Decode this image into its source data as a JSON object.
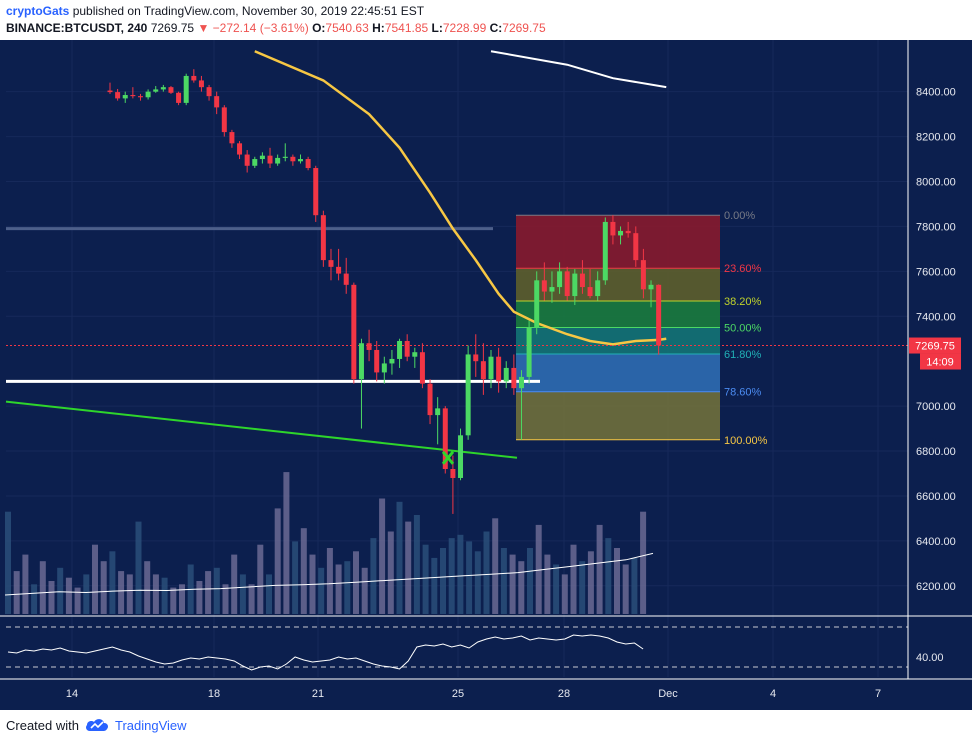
{
  "header": {
    "author": "cryptoGats",
    "published": "published on TradingView.com, November 30, 2019 22:45:51 EST",
    "symbol": "BINANCE:BTCUSDT, 240",
    "last": "7269.75",
    "change": "▼ −272.14 (−3.61%)",
    "o_label": "O:",
    "o_val": "7540.63",
    "h_label": "H:",
    "h_val": "7541.85",
    "l_label": "L:",
    "l_val": "7228.99",
    "c_label": "C:",
    "c_val": "7269.75"
  },
  "footer": {
    "created_with": "Created with",
    "brand": "TradingView"
  },
  "colors": {
    "background": "#0c1f4e",
    "up": "#4cd964",
    "down": "#f23645",
    "ma_slow": "#ffffff",
    "ma_fast": "#f7c744",
    "trendline": "#2ed52b",
    "support": "#ffffff",
    "resistance": "#4d5f8a",
    "price_line": "#f23645"
  },
  "chart_data": {
    "type": "candlestick",
    "x_ticks": [
      "14",
      "18",
      "21",
      "25",
      "28",
      "Dec",
      "4",
      "7"
    ],
    "y_ticks": [
      "8400.00",
      "8200.00",
      "8000.00",
      "7800.00",
      "7600.00",
      "7400.00",
      "7000.00",
      "6800.00",
      "6600.00",
      "6400.00",
      "6200.00"
    ],
    "ylim": [
      6070,
      8630
    ],
    "current_price": "7269.75",
    "countdown": "14:09",
    "fibonacci": {
      "high": 7850,
      "low": 6850,
      "levels": [
        {
          "label": "0.00%",
          "ratio": 0.0,
          "color": "#787b86",
          "fill": "#861a2e"
        },
        {
          "label": "23.60%",
          "ratio": 0.236,
          "color": "#f23645",
          "fill": "#5c5d2c"
        },
        {
          "label": "38.20%",
          "ratio": 0.382,
          "color": "#c0d32b",
          "fill": "#1a7a3e"
        },
        {
          "label": "50.00%",
          "ratio": 0.5,
          "color": "#4cd964",
          "fill": "#137274"
        },
        {
          "label": "61.80%",
          "ratio": 0.618,
          "color": "#21b1b7",
          "fill": "#2e6ab0"
        },
        {
          "label": "78.60%",
          "ratio": 0.786,
          "color": "#4c8cf2",
          "fill": "#6e6e3c"
        },
        {
          "label": "100.00%",
          "ratio": 1.0,
          "color": "#f7c744",
          "fill": null
        }
      ]
    },
    "candles": [
      {
        "o": 8405,
        "h": 8440,
        "l": 8390,
        "c": 8398
      },
      {
        "o": 8398,
        "h": 8412,
        "l": 8360,
        "c": 8370
      },
      {
        "o": 8370,
        "h": 8400,
        "l": 8350,
        "c": 8385
      },
      {
        "o": 8385,
        "h": 8420,
        "l": 8370,
        "c": 8380
      },
      {
        "o": 8380,
        "h": 8390,
        "l": 8360,
        "c": 8375
      },
      {
        "o": 8375,
        "h": 8410,
        "l": 8365,
        "c": 8400
      },
      {
        "o": 8400,
        "h": 8425,
        "l": 8395,
        "c": 8410
      },
      {
        "o": 8410,
        "h": 8430,
        "l": 8400,
        "c": 8420
      },
      {
        "o": 8420,
        "h": 8425,
        "l": 8390,
        "c": 8395
      },
      {
        "o": 8395,
        "h": 8400,
        "l": 8340,
        "c": 8350
      },
      {
        "o": 8350,
        "h": 8480,
        "l": 8340,
        "c": 8470
      },
      {
        "o": 8470,
        "h": 8500,
        "l": 8440,
        "c": 8450
      },
      {
        "o": 8450,
        "h": 8470,
        "l": 8400,
        "c": 8420
      },
      {
        "o": 8420,
        "h": 8430,
        "l": 8360,
        "c": 8380
      },
      {
        "o": 8380,
        "h": 8400,
        "l": 8300,
        "c": 8330
      },
      {
        "o": 8330,
        "h": 8340,
        "l": 8200,
        "c": 8220
      },
      {
        "o": 8220,
        "h": 8230,
        "l": 8150,
        "c": 8170
      },
      {
        "o": 8170,
        "h": 8180,
        "l": 8100,
        "c": 8120
      },
      {
        "o": 8120,
        "h": 8140,
        "l": 8040,
        "c": 8070
      },
      {
        "o": 8070,
        "h": 8110,
        "l": 8060,
        "c": 8100
      },
      {
        "o": 8100,
        "h": 8130,
        "l": 8080,
        "c": 8115
      },
      {
        "o": 8115,
        "h": 8150,
        "l": 8060,
        "c": 8080
      },
      {
        "o": 8080,
        "h": 8120,
        "l": 8070,
        "c": 8105
      },
      {
        "o": 8105,
        "h": 8170,
        "l": 8090,
        "c": 8110
      },
      {
        "o": 8110,
        "h": 8120,
        "l": 8070,
        "c": 8090
      },
      {
        "o": 8090,
        "h": 8120,
        "l": 8080,
        "c": 8100
      },
      {
        "o": 8100,
        "h": 8110,
        "l": 8050,
        "c": 8060
      },
      {
        "o": 8060,
        "h": 8070,
        "l": 7820,
        "c": 7850
      },
      {
        "o": 7850,
        "h": 7870,
        "l": 7620,
        "c": 7650
      },
      {
        "o": 7650,
        "h": 7700,
        "l": 7560,
        "c": 7620
      },
      {
        "o": 7620,
        "h": 7700,
        "l": 7560,
        "c": 7590
      },
      {
        "o": 7590,
        "h": 7660,
        "l": 7500,
        "c": 7540
      },
      {
        "o": 7540,
        "h": 7550,
        "l": 7100,
        "c": 7120
      },
      {
        "o": 7120,
        "h": 7300,
        "l": 6900,
        "c": 7280
      },
      {
        "o": 7280,
        "h": 7340,
        "l": 7200,
        "c": 7250
      },
      {
        "o": 7250,
        "h": 7290,
        "l": 7110,
        "c": 7150
      },
      {
        "o": 7150,
        "h": 7220,
        "l": 7100,
        "c": 7190
      },
      {
        "o": 7190,
        "h": 7250,
        "l": 7140,
        "c": 7210
      },
      {
        "o": 7210,
        "h": 7300,
        "l": 7170,
        "c": 7290
      },
      {
        "o": 7290,
        "h": 7320,
        "l": 7200,
        "c": 7220
      },
      {
        "o": 7220,
        "h": 7260,
        "l": 7170,
        "c": 7240
      },
      {
        "o": 7240,
        "h": 7280,
        "l": 7080,
        "c": 7100
      },
      {
        "o": 7100,
        "h": 7120,
        "l": 6920,
        "c": 6960
      },
      {
        "o": 6960,
        "h": 7040,
        "l": 6830,
        "c": 6990
      },
      {
        "o": 6990,
        "h": 7000,
        "l": 6700,
        "c": 6720
      },
      {
        "o": 6720,
        "h": 6780,
        "l": 6520,
        "c": 6680
      },
      {
        "o": 6680,
        "h": 6900,
        "l": 6670,
        "c": 6870
      },
      {
        "o": 6870,
        "h": 7270,
        "l": 6850,
        "c": 7230
      },
      {
        "o": 7230,
        "h": 7320,
        "l": 7130,
        "c": 7200
      },
      {
        "o": 7200,
        "h": 7280,
        "l": 7050,
        "c": 7120
      },
      {
        "o": 7120,
        "h": 7250,
        "l": 7080,
        "c": 7220
      },
      {
        "o": 7220,
        "h": 7260,
        "l": 7060,
        "c": 7110
      },
      {
        "o": 7110,
        "h": 7200,
        "l": 7080,
        "c": 7170
      },
      {
        "o": 7170,
        "h": 7230,
        "l": 7050,
        "c": 7080
      },
      {
        "o": 7080,
        "h": 7160,
        "l": 6850,
        "c": 7130
      },
      {
        "o": 7130,
        "h": 7380,
        "l": 7100,
        "c": 7350
      },
      {
        "o": 7350,
        "h": 7600,
        "l": 7320,
        "c": 7560
      },
      {
        "o": 7560,
        "h": 7640,
        "l": 7470,
        "c": 7510
      },
      {
        "o": 7510,
        "h": 7600,
        "l": 7460,
        "c": 7530
      },
      {
        "o": 7530,
        "h": 7640,
        "l": 7500,
        "c": 7600
      },
      {
        "o": 7600,
        "h": 7620,
        "l": 7470,
        "c": 7490
      },
      {
        "o": 7490,
        "h": 7610,
        "l": 7450,
        "c": 7590
      },
      {
        "o": 7590,
        "h": 7650,
        "l": 7500,
        "c": 7530
      },
      {
        "o": 7530,
        "h": 7610,
        "l": 7480,
        "c": 7490
      },
      {
        "o": 7490,
        "h": 7600,
        "l": 7470,
        "c": 7560
      },
      {
        "o": 7560,
        "h": 7840,
        "l": 7540,
        "c": 7820
      },
      {
        "o": 7820,
        "h": 7850,
        "l": 7720,
        "c": 7760
      },
      {
        "o": 7760,
        "h": 7800,
        "l": 7720,
        "c": 7780
      },
      {
        "o": 7780,
        "h": 7820,
        "l": 7750,
        "c": 7770
      },
      {
        "o": 7770,
        "h": 7800,
        "l": 7620,
        "c": 7650
      },
      {
        "o": 7650,
        "h": 7700,
        "l": 7480,
        "c": 7520
      },
      {
        "o": 7520,
        "h": 7560,
        "l": 7440,
        "c": 7540
      },
      {
        "o": 7540,
        "h": 7542,
        "l": 7229,
        "c": 7270
      }
    ],
    "volume": [
      310,
      130,
      180,
      90,
      160,
      100,
      140,
      110,
      80,
      120,
      210,
      160,
      190,
      130,
      120,
      280,
      160,
      120,
      110,
      80,
      90,
      150,
      100,
      130,
      140,
      90,
      180,
      120,
      90,
      210,
      120,
      320,
      430,
      220,
      260,
      180,
      140,
      200,
      150,
      160,
      190,
      140,
      230,
      350,
      250,
      340,
      280,
      300,
      210,
      170,
      200,
      230,
      240,
      220,
      190,
      250,
      290,
      200,
      180,
      160,
      200,
      270,
      180,
      150,
      120,
      210,
      160,
      190,
      270,
      230,
      200,
      150,
      170,
      310
    ],
    "volume_ma": [
      120,
      125,
      130,
      128,
      132,
      135,
      134,
      138,
      140,
      145,
      150,
      152,
      155,
      160,
      165,
      170,
      175,
      180,
      185,
      190,
      200,
      210,
      220,
      230,
      250
    ],
    "rsi_ylim": [
      20,
      80
    ],
    "rsi_tick": "40.00",
    "rsi": [
      45,
      44,
      47,
      46,
      48,
      47,
      49,
      46,
      45,
      44,
      46,
      48,
      50,
      47,
      45,
      41,
      38,
      35,
      33,
      34,
      37,
      39,
      38,
      40,
      39,
      38,
      36,
      31,
      27,
      30,
      31,
      28,
      33,
      40,
      37,
      35,
      36,
      37,
      40,
      38,
      39,
      36,
      33,
      31,
      30,
      28,
      36,
      50,
      52,
      51,
      53,
      50,
      52,
      49,
      55,
      58,
      60,
      58,
      59,
      61,
      57,
      59,
      58,
      57,
      58,
      62,
      61,
      62,
      61,
      59,
      55,
      53,
      54,
      48
    ],
    "ma_fast_points": [
      [
        19,
        8580
      ],
      [
        28,
        8450
      ],
      [
        34,
        8300
      ],
      [
        38,
        8150
      ],
      [
        42,
        7950
      ],
      [
        45,
        7790
      ],
      [
        48,
        7650
      ],
      [
        51,
        7500
      ],
      [
        53,
        7420
      ],
      [
        56,
        7370
      ],
      [
        60,
        7320
      ],
      [
        63,
        7290
      ],
      [
        66,
        7275
      ],
      [
        69,
        7290
      ],
      [
        72,
        7295
      ],
      [
        73,
        7300
      ]
    ],
    "ma_slow_points": [
      [
        50,
        8580
      ],
      [
        60,
        8520
      ],
      [
        66,
        8460
      ],
      [
        73,
        8420
      ]
    ]
  }
}
